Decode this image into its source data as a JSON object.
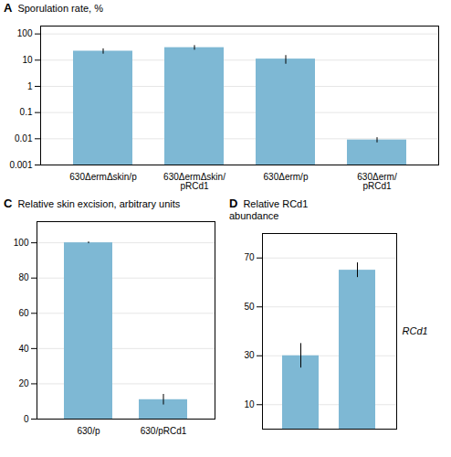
{
  "chart_data": [
    {
      "type": "bar",
      "title": "Sporulation rate, %",
      "annotations": [
        "A"
      ],
      "categories": [
        "630ΔermΔskin/p",
        "630ΔermΔskin/\npRCd1",
        "630Δerm/p",
        "630Δerm/\npRCd1"
      ],
      "values": [
        22,
        30,
        11,
        0.009
      ],
      "errors": [
        5,
        6,
        4,
        0.002
      ],
      "color": "#7EB8D4",
      "log": "y",
      "ylim": [
        0.001,
        200
      ],
      "yticks": [
        0.001,
        0.01,
        0.1,
        1,
        10,
        100
      ],
      "grid": true
    },
    {
      "type": "bar",
      "title": "Relative skin excision, arbitrary units",
      "annotations": [
        "C"
      ],
      "categories": [
        "630/p",
        "630/pRCd1"
      ],
      "values": [
        100,
        11
      ],
      "errors": [
        0.5,
        3
      ],
      "color": "#7EB8D4",
      "ylim": [
        0,
        112
      ],
      "yticks": [
        0,
        20,
        40,
        60,
        80,
        100
      ],
      "grid": true
    },
    {
      "type": "bar",
      "title": "Relative RCd1\nabundance",
      "annotations": [
        "D",
        "RCd1"
      ],
      "categories": [
        null,
        null
      ],
      "values": [
        30,
        65
      ],
      "errors": [
        5,
        3
      ],
      "color": "#7EB8D4",
      "ylim": [
        0,
        80
      ],
      "yticks": [
        10,
        30,
        50,
        70
      ],
      "grid": true,
      "tick_labels": "y"
    }
  ]
}
